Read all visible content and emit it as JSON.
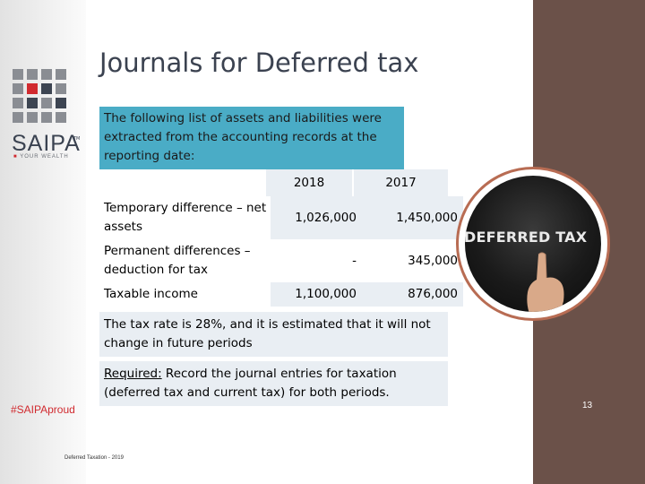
{
  "slide": {
    "title": "Journals for Deferred tax",
    "intro": "The following list of assets and liabilities were extracted from the accounting records at the reporting date:",
    "table": {
      "headers": [
        "2018",
        "2017"
      ],
      "rows": [
        {
          "label": "Temporary difference – net assets",
          "v2018": "1,026,000",
          "v2017": "1,450,000"
        },
        {
          "label": "Permanent differences – deduction for tax",
          "v2018": "-",
          "v2017": "345,000"
        },
        {
          "label": "Taxable income",
          "v2018": "1,100,000",
          "v2017": "876,000"
        }
      ]
    },
    "note": "The tax rate is 28%, and it is estimated that it will not change in future periods",
    "required_label": "Required:",
    "required_text": " Record the journal entries for taxation (deferred tax and current tax) for both periods.",
    "image_text": "DEFERRED TAX",
    "page_number": "13",
    "footer": "Deferred Taxation - 2019"
  },
  "branding": {
    "logo_name": "SAIPA",
    "logo_tm": "TM",
    "logo_tagline": "YOUR WEALTH",
    "hashtag": "#SAIPAproud"
  },
  "colors": {
    "accent_blue": "#4aacc6",
    "right_band": "#6b5149",
    "brand_red": "#d12a2f",
    "title_gray": "#3b4250"
  }
}
